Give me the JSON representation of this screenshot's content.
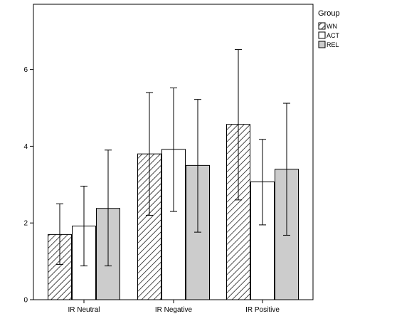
{
  "chart_data": {
    "type": "bar",
    "categories": [
      "IR Neutral",
      "IR Negative",
      "IR Positive"
    ],
    "series": [
      {
        "name": "WN",
        "values": [
          1.7,
          3.8,
          4.57
        ],
        "err_low": [
          0.92,
          2.2,
          2.6
        ],
        "err_high": [
          2.5,
          5.4,
          6.52
        ],
        "fill": "hatch"
      },
      {
        "name": "ACT",
        "values": [
          1.92,
          3.92,
          3.07
        ],
        "err_low": [
          0.88,
          2.3,
          1.95
        ],
        "err_high": [
          2.96,
          5.52,
          4.18
        ],
        "fill": "#ffffff"
      },
      {
        "name": "REL",
        "values": [
          2.38,
          3.5,
          3.4
        ],
        "err_low": [
          0.88,
          1.76,
          1.68
        ],
        "err_high": [
          3.9,
          5.22,
          5.12
        ],
        "fill": "#cccccc"
      }
    ],
    "yticks": [
      "0",
      "2",
      "4",
      "6"
    ],
    "ylim": [
      0,
      7.7
    ],
    "legend_title": "Group",
    "legend_position": "top-right",
    "grid": false
  }
}
